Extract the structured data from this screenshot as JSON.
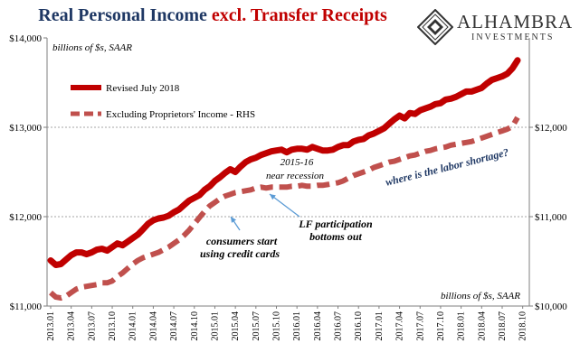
{
  "title_part1": "Real Personal Income ",
  "title_part2": "excl. Transfer Receipts",
  "logo": {
    "name": "ALHAMBRA",
    "sub": "INVESTMENTS"
  },
  "chart_data": {
    "type": "line",
    "title": "Real Personal Income excl. Transfer Receipts",
    "left_axis_label": "billions of $s, SAAR",
    "right_axis_label": "billions of $s, SAAR",
    "ylim_left": [
      11000,
      14000
    ],
    "ylim_right": [
      10000,
      13000
    ],
    "y_ticks_left": [
      "$11,000",
      "$12,000",
      "$13,000",
      "$14,000"
    ],
    "y_ticks_right": [
      "$10,000",
      "$11,000",
      "$12,000"
    ],
    "x_ticks": [
      "2013.01",
      "2013.04",
      "2013.07",
      "2013.10",
      "2014.01",
      "2014.04",
      "2014.07",
      "2014.10",
      "2015.01",
      "2015.04",
      "2015.07",
      "2015.10",
      "2016.01",
      "2016.04",
      "2016.07",
      "2016.10",
      "2017.01",
      "2017.04",
      "2017.07",
      "2017.10",
      "2018.01",
      "2018.04",
      "2018.07",
      "2018.10"
    ],
    "gridlines": true,
    "legend_position": "top-left",
    "series": [
      {
        "name": "Revised July 2018",
        "axis": "left",
        "color": "#c00000",
        "style": "solid",
        "values": [
          11510,
          11460,
          11470,
          11520,
          11570,
          11600,
          11600,
          11580,
          11600,
          11630,
          11640,
          11620,
          11660,
          11700,
          11680,
          11720,
          11760,
          11800,
          11860,
          11920,
          11960,
          11980,
          11990,
          12010,
          12050,
          12080,
          12130,
          12180,
          12210,
          12240,
          12300,
          12340,
          12400,
          12440,
          12490,
          12530,
          12500,
          12560,
          12610,
          12640,
          12660,
          12690,
          12710,
          12730,
          12740,
          12750,
          12720,
          12750,
          12760,
          12760,
          12750,
          12780,
          12760,
          12740,
          12740,
          12750,
          12780,
          12800,
          12800,
          12840,
          12860,
          12870,
          12910,
          12930,
          12960,
          12990,
          13040,
          13090,
          13130,
          13100,
          13160,
          13150,
          13190,
          13210,
          13230,
          13260,
          13270,
          13310,
          13320,
          13340,
          13370,
          13400,
          13400,
          13420,
          13440,
          13490,
          13530,
          13550,
          13570,
          13600,
          13660,
          13750
        ]
      },
      {
        "name": "Excluding Proprietors' Income - RHS",
        "axis": "right",
        "color": "#c0504d",
        "style": "dashed",
        "values": [
          10150,
          10100,
          10090,
          10110,
          10150,
          10190,
          10210,
          10220,
          10230,
          10240,
          10260,
          10260,
          10280,
          10330,
          10370,
          10420,
          10470,
          10510,
          10540,
          10560,
          10580,
          10600,
          10630,
          10660,
          10700,
          10740,
          10790,
          10850,
          10920,
          10990,
          11060,
          11120,
          11160,
          11200,
          11230,
          11250,
          11270,
          11280,
          11290,
          11300,
          11320,
          11330,
          11320,
          11330,
          11330,
          11330,
          11330,
          11340,
          11340,
          11350,
          11340,
          11340,
          11350,
          11350,
          11360,
          11370,
          11380,
          11400,
          11430,
          11460,
          11480,
          11500,
          11520,
          11550,
          11570,
          11590,
          11610,
          11620,
          11640,
          11660,
          11680,
          11690,
          11710,
          11730,
          11740,
          11760,
          11770,
          11780,
          11800,
          11810,
          11820,
          11830,
          11840,
          11860,
          11880,
          11900,
          11920,
          11940,
          11960,
          11980,
          12010,
          12110
        ]
      }
    ],
    "annotations": [
      {
        "text": "2015-16 near recession",
        "lines": [
          "2015-16",
          "near recession"
        ]
      },
      {
        "text": "where is the labor shortage?",
        "lines": [
          "where is the labor shortage?"
        ]
      },
      {
        "text": "consumers start using credit cards",
        "lines": [
          "consumers start",
          "using credit cards"
        ]
      },
      {
        "text": "LF participation bottoms out",
        "lines": [
          "LF participation",
          "bottoms out"
        ]
      }
    ]
  }
}
